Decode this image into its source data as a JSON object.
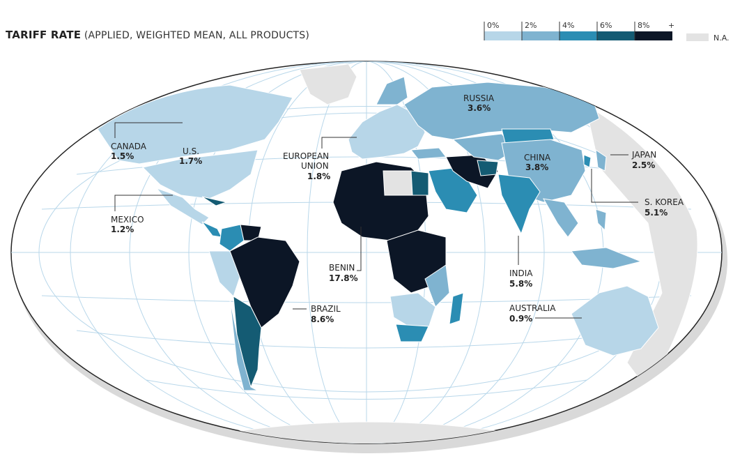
{
  "title": {
    "main": "TARIFF RATE",
    "sub": "(APPLIED, WEIGHTED MEAN, ALL PRODUCTS)"
  },
  "legend": {
    "bins": [
      {
        "label": "0%",
        "color": "#b7d6e8"
      },
      {
        "label": "2%",
        "color": "#7fb3d0"
      },
      {
        "label": "4%",
        "color": "#2b8db3"
      },
      {
        "label": "6%",
        "color": "#145b73"
      },
      {
        "label": "8%",
        "color": "#0c1626"
      }
    ],
    "plus_label": "+",
    "na_label": "N.A.",
    "na_color": "#e3e3e3"
  },
  "callouts": [
    {
      "id": "canada",
      "name": "CANADA",
      "value": "1.5%"
    },
    {
      "id": "us",
      "name": "U.S.",
      "value": "1.7%"
    },
    {
      "id": "mexico",
      "name": "MEXICO",
      "value": "1.2%"
    },
    {
      "id": "eu",
      "name": "EUROPEAN\nUNION",
      "value": "1.8%"
    },
    {
      "id": "russia",
      "name": "RUSSIA",
      "value": "3.6%"
    },
    {
      "id": "china",
      "name": "CHINA",
      "value": "3.8%"
    },
    {
      "id": "japan",
      "name": "JAPAN",
      "value": "2.5%"
    },
    {
      "id": "skorea",
      "name": "S. KOREA",
      "value": "5.1%"
    },
    {
      "id": "india",
      "name": "INDIA",
      "value": "5.8%"
    },
    {
      "id": "benin",
      "name": "BENIN",
      "value": "17.8%"
    },
    {
      "id": "brazil",
      "name": "BRAZIL",
      "value": "8.6%"
    },
    {
      "id": "australia",
      "name": "AUSTRALIA",
      "value": "0.9%"
    }
  ]
}
